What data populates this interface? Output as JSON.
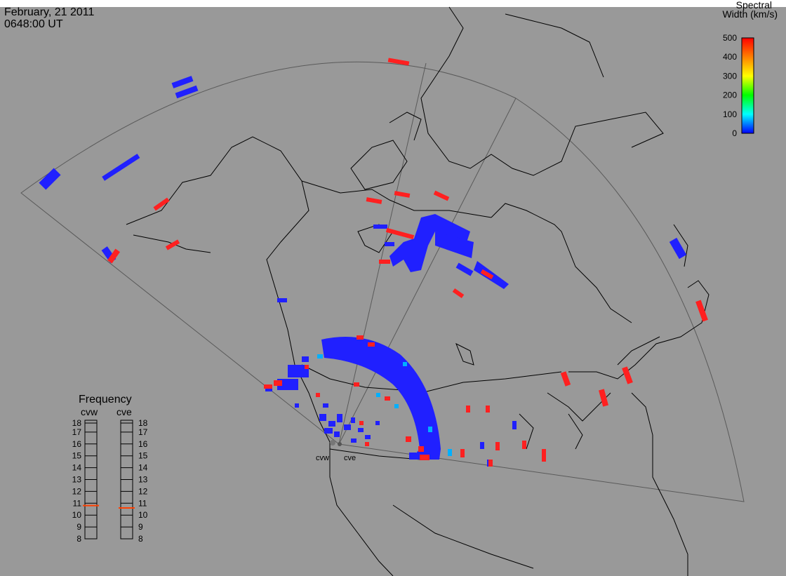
{
  "header": {
    "date": "February, 21 2011",
    "time": "0648:00 UT"
  },
  "colorbar": {
    "title_line1": "Spectral",
    "title_line2": "Width (km/s)",
    "ticks": [
      "500",
      "400",
      "300",
      "200",
      "100",
      "0"
    ],
    "min": 0,
    "max": 500,
    "colors": [
      "#0000ff",
      "#00ffff",
      "#00ff00",
      "#ffff00",
      "#ff8000",
      "#ff0000"
    ]
  },
  "radars": [
    {
      "id": "cvw",
      "label": "cvw",
      "frequency_mhz": 10.8
    },
    {
      "id": "cve",
      "label": "cve",
      "frequency_mhz": 10.6
    }
  ],
  "frequency_panel": {
    "title": "Frequency",
    "ticks": [
      "18",
      "17",
      "16",
      "15",
      "14",
      "13",
      "12",
      "11",
      "10",
      "9",
      "8"
    ],
    "min": 8,
    "max": 18,
    "indicator_color": "#ff4000"
  },
  "colors": {
    "background": "#999999",
    "land_outline": "#000000",
    "fov_outline": "#555555",
    "low_width": "#2020ff",
    "high_width": "#ff2020",
    "mid_width": "#00aaff"
  }
}
